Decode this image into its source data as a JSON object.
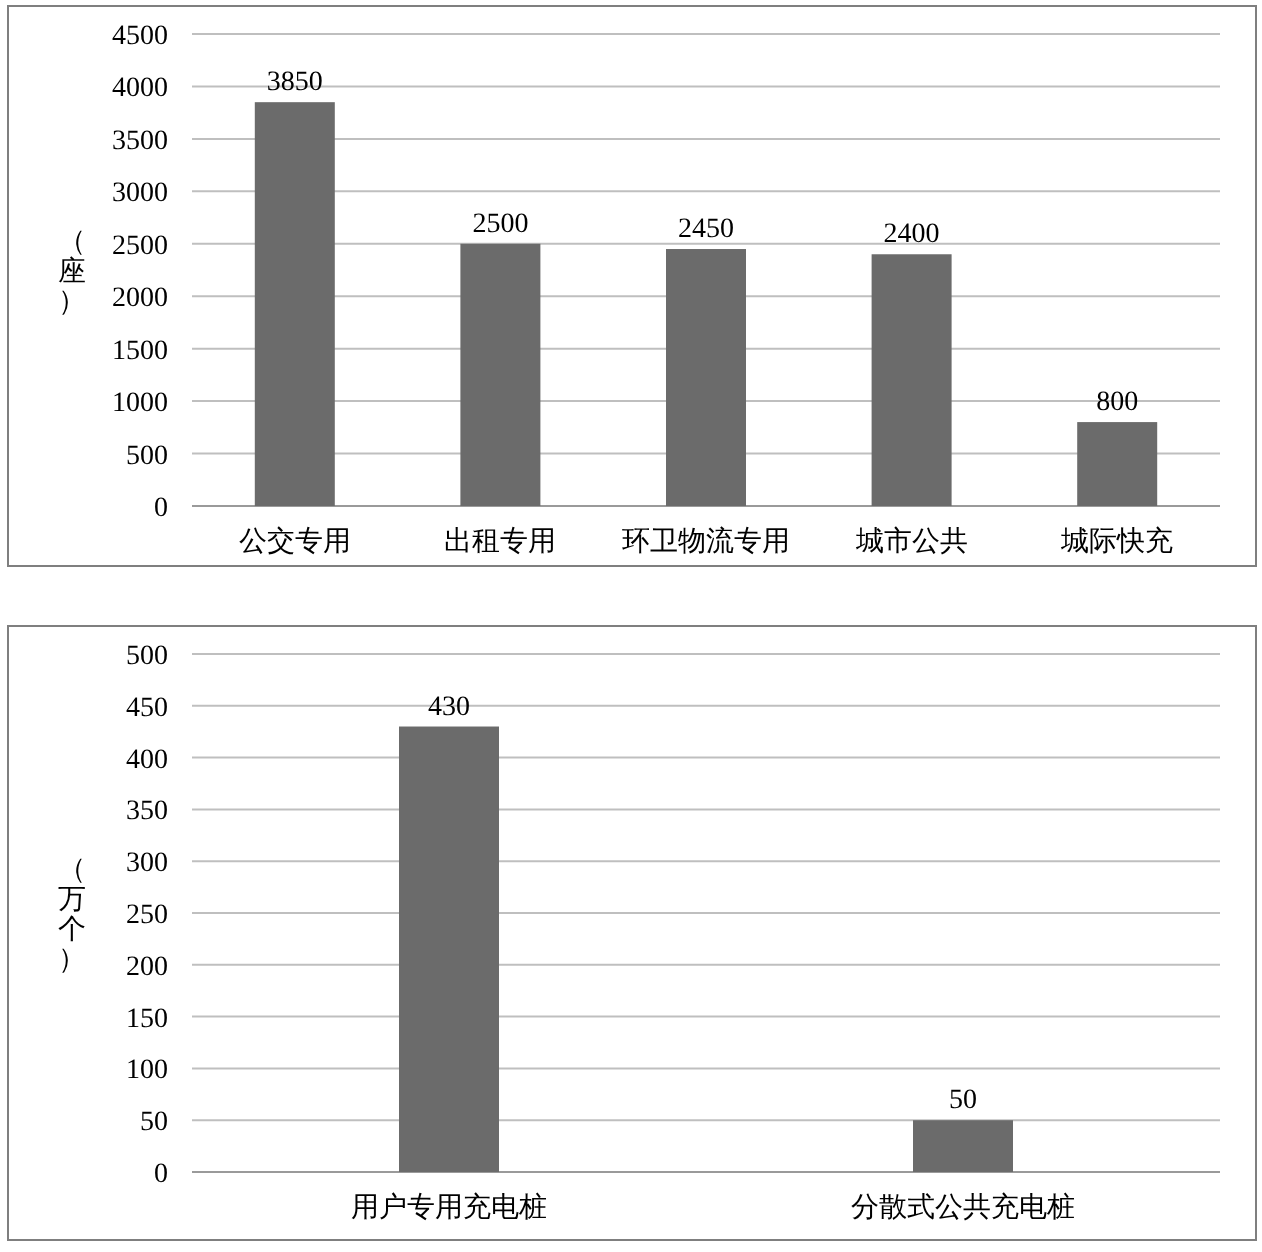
{
  "chart_data": [
    {
      "type": "bar",
      "ylabel": "（座）",
      "categories": [
        "公交专用",
        "出租专用",
        "环卫物流专用",
        "城市公共",
        "城际快充"
      ],
      "values": [
        3850,
        2500,
        2450,
        2400,
        800
      ],
      "color": "#6b6b6b",
      "ylim": [
        0,
        4500
      ],
      "yticks": [
        0,
        500,
        1000,
        1500,
        2000,
        2500,
        3000,
        3500,
        4000,
        4500
      ],
      "grid": "y",
      "data_labels": true
    },
    {
      "type": "bar",
      "ylabel": "（万个）",
      "categories": [
        "用户专用充电桩",
        "分散式公共充电桩"
      ],
      "values": [
        430,
        50
      ],
      "color": "#6b6b6b",
      "ylim": [
        0,
        500
      ],
      "yticks": [
        0,
        50,
        100,
        150,
        200,
        250,
        300,
        350,
        400,
        450,
        500
      ],
      "grid": "y",
      "data_labels": true
    }
  ]
}
